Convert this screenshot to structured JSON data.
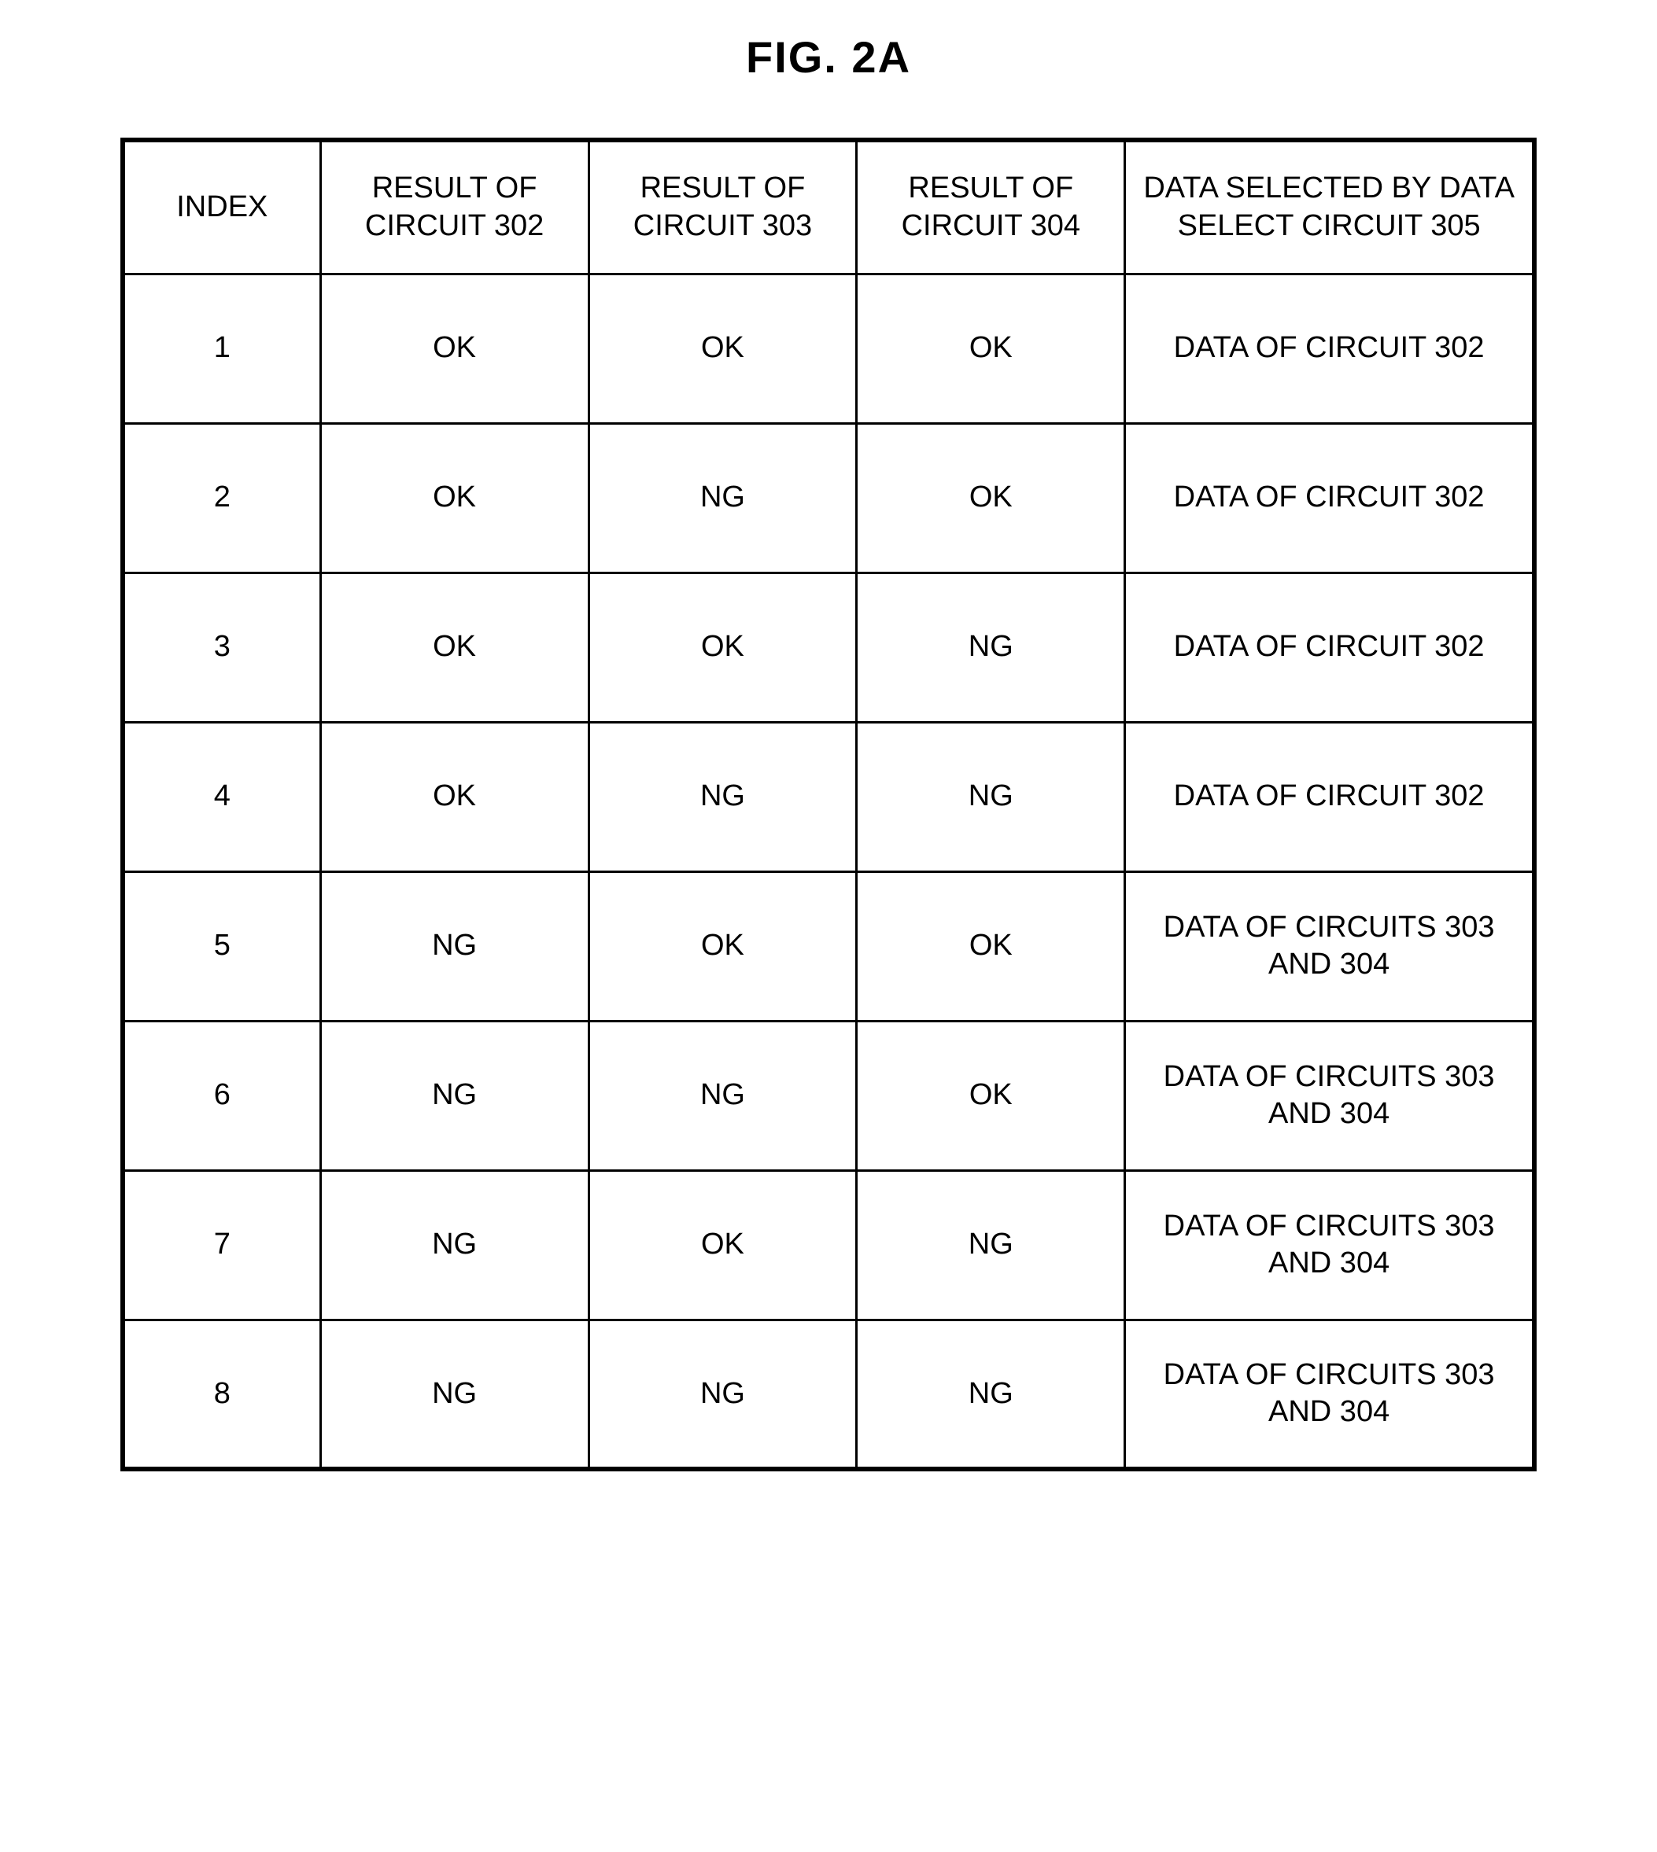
{
  "figure": {
    "title": "FIG. 2A"
  },
  "table": {
    "type": "table",
    "border_color": "#000000",
    "background_color": "#ffffff",
    "text_color": "#000000",
    "outer_border_width": 6,
    "inner_border_width": 3,
    "font_size_pt": 28,
    "columns": [
      {
        "key": "index",
        "label": "INDEX",
        "width_pct": 14,
        "align": "center"
      },
      {
        "key": "r302",
        "label": "RESULT OF CIRCUIT 302",
        "width_pct": 19,
        "align": "center"
      },
      {
        "key": "r303",
        "label": "RESULT OF CIRCUIT 303",
        "width_pct": 19,
        "align": "center"
      },
      {
        "key": "r304",
        "label": "RESULT OF CIRCUIT 304",
        "width_pct": 19,
        "align": "center"
      },
      {
        "key": "sel",
        "label": "DATA SELECTED BY DATA SELECT CIRCUIT 305",
        "width_pct": 29,
        "align": "center"
      }
    ],
    "rows": [
      {
        "index": "1",
        "r302": "OK",
        "r303": "OK",
        "r304": "OK",
        "sel": "DATA OF CIRCUIT 302"
      },
      {
        "index": "2",
        "r302": "OK",
        "r303": "NG",
        "r304": "OK",
        "sel": "DATA OF CIRCUIT 302"
      },
      {
        "index": "3",
        "r302": "OK",
        "r303": "OK",
        "r304": "NG",
        "sel": "DATA OF CIRCUIT 302"
      },
      {
        "index": "4",
        "r302": "OK",
        "r303": "NG",
        "r304": "NG",
        "sel": "DATA OF CIRCUIT 302"
      },
      {
        "index": "5",
        "r302": "NG",
        "r303": "OK",
        "r304": "OK",
        "sel": "DATA OF CIRCUITS 303 AND 304"
      },
      {
        "index": "6",
        "r302": "NG",
        "r303": "NG",
        "r304": "OK",
        "sel": "DATA OF CIRCUITS 303 AND 304"
      },
      {
        "index": "7",
        "r302": "NG",
        "r303": "OK",
        "r304": "NG",
        "sel": "DATA OF CIRCUITS 303 AND 304"
      },
      {
        "index": "8",
        "r302": "NG",
        "r303": "NG",
        "r304": "NG",
        "sel": "DATA OF CIRCUITS 303 AND 304"
      }
    ]
  }
}
